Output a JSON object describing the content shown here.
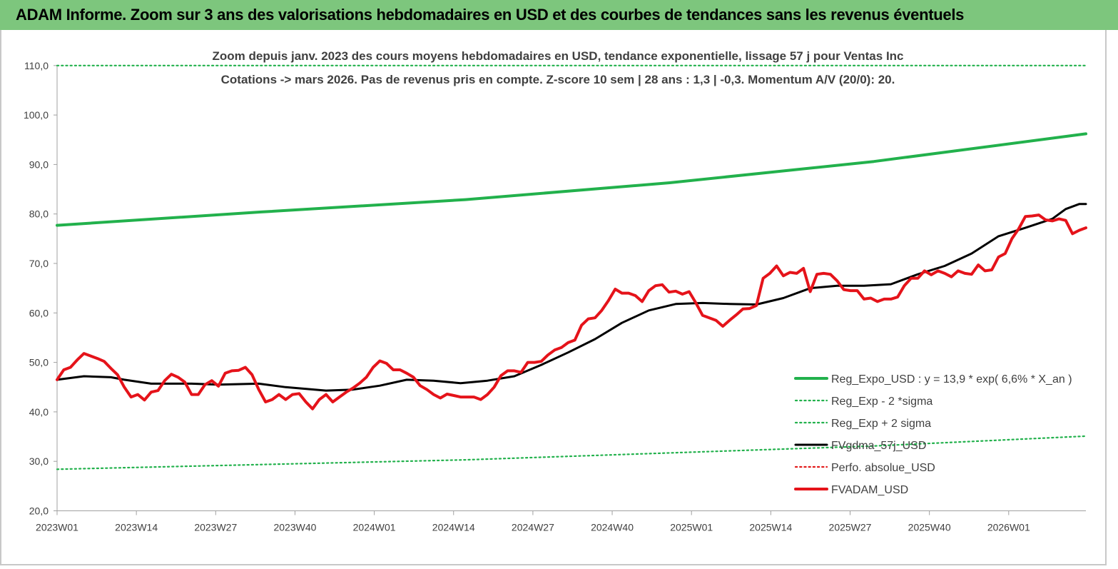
{
  "header": {
    "title": "ADAM Informe. Zoom sur 3 ans des valorisations hebdomadaires en USD et des courbes de tendances sans les revenus éventuels"
  },
  "chart_data": {
    "type": "line",
    "title_line1": "Zoom depuis janv. 2023 des cours moyens hebdomadaires en USD, tendance exponentielle, lissage 57 j pour Ventas Inc",
    "title_line2": "Cotations -> mars 2026. Pas de revenus pris en compte. Z-score 10 sem | 28 ans : 1,3 | -0,3. Momentum A/V (20/0): 20.",
    "x_ticks": [
      "2023W01",
      "2023W14",
      "2023W27",
      "2023W40",
      "2024W01",
      "2024W14",
      "2024W27",
      "2024W40",
      "2025W01",
      "2025W14",
      "2025W27",
      "2025W40",
      "2026W01"
    ],
    "y_ticks": [
      "20,0",
      "30,0",
      "40,0",
      "50,0",
      "60,0",
      "70,0",
      "80,0",
      "90,0",
      "100,0",
      "110,0"
    ],
    "ylim": [
      20,
      110
    ],
    "weeks": 131,
    "grid": false,
    "legend_position": "bottom-right",
    "series": [
      {
        "name": "Reg_Expo_USD : y = 13,9 * exp( 6,6% *  X_an )",
        "color": "#22b14c",
        "style": "solid",
        "anchors": [
          [
            0,
            77.7
          ],
          [
            26,
            80.4
          ],
          [
            52,
            82.9
          ],
          [
            78,
            86.3
          ],
          [
            104,
            90.6
          ],
          [
            131,
            96.2
          ]
        ]
      },
      {
        "name": "Reg_Exp - 2 *sigma",
        "color": "#22b14c",
        "style": "dotted",
        "anchors": [
          [
            0,
            28.4
          ],
          [
            52,
            30.3
          ],
          [
            104,
            33.1
          ],
          [
            131,
            35.1
          ]
        ]
      },
      {
        "name": "Reg_Exp + 2 sigma",
        "color": "#22b14c",
        "style": "dotted",
        "anchors": [
          [
            0,
            110
          ],
          [
            131,
            110
          ]
        ]
      },
      {
        "name": "FVgdma_57j_USD",
        "color": "#000000",
        "style": "solid",
        "anchors": [
          [
            0,
            46.5
          ],
          [
            4,
            47.2
          ],
          [
            8,
            47
          ],
          [
            10,
            46.5
          ],
          [
            14,
            45.7
          ],
          [
            20,
            45.7
          ],
          [
            24,
            45.5
          ],
          [
            30,
            45.7
          ],
          [
            34,
            45
          ],
          [
            40,
            44.3
          ],
          [
            44,
            44.5
          ],
          [
            48,
            45.3
          ],
          [
            52,
            46.5
          ],
          [
            56,
            46.3
          ],
          [
            60,
            45.8
          ],
          [
            64,
            46.3
          ],
          [
            68,
            47.2
          ],
          [
            72,
            49.5
          ],
          [
            76,
            52
          ],
          [
            80,
            54.7
          ],
          [
            84,
            58
          ],
          [
            88,
            60.5
          ],
          [
            92,
            61.8
          ],
          [
            96,
            62
          ],
          [
            100,
            61.8
          ],
          [
            104,
            61.7
          ],
          [
            108,
            63
          ],
          [
            112,
            65
          ],
          [
            116,
            65.5
          ],
          [
            120,
            65.5
          ],
          [
            124,
            65.8
          ],
          [
            128,
            67.8
          ],
          [
            132,
            69.5
          ],
          [
            136,
            72
          ],
          [
            140,
            75.5
          ],
          [
            144,
            77.2
          ],
          [
            148,
            79
          ],
          [
            150,
            81
          ],
          [
            152,
            82
          ],
          [
            153,
            82
          ]
        ]
      },
      {
        "name": "Perfo. absolue_USD",
        "color": "#e21b1b",
        "style": "dotted",
        "anchors": []
      },
      {
        "name": "FVADAM_USD",
        "color": "#e5131a",
        "style": "solid",
        "anchors": [
          [
            0,
            46.5
          ],
          [
            1,
            48.5
          ],
          [
            2,
            49
          ],
          [
            3,
            50.5
          ],
          [
            4,
            51.8
          ],
          [
            5,
            51.3
          ],
          [
            6,
            50.8
          ],
          [
            7,
            50.2
          ],
          [
            8,
            48.8
          ],
          [
            9,
            47.5
          ],
          [
            10,
            45
          ],
          [
            11,
            43
          ],
          [
            12,
            43.5
          ],
          [
            13,
            42.4
          ],
          [
            14,
            44
          ],
          [
            15,
            44.3
          ],
          [
            16,
            46.3
          ],
          [
            17,
            47.6
          ],
          [
            18,
            47
          ],
          [
            19,
            46
          ],
          [
            20,
            43.5
          ],
          [
            21,
            43.5
          ],
          [
            22,
            45.5
          ],
          [
            23,
            46.3
          ],
          [
            24,
            45.2
          ],
          [
            25,
            47.8
          ],
          [
            26,
            48.3
          ],
          [
            27,
            48.4
          ],
          [
            28,
            49
          ],
          [
            29,
            47.5
          ],
          [
            30,
            44.5
          ],
          [
            31,
            42
          ],
          [
            32,
            42.5
          ],
          [
            33,
            43.5
          ],
          [
            34,
            42.5
          ],
          [
            35,
            43.5
          ],
          [
            36,
            43.7
          ],
          [
            37,
            42
          ],
          [
            38,
            40.6
          ],
          [
            39,
            42.5
          ],
          [
            40,
            43.5
          ],
          [
            41,
            42
          ],
          [
            42,
            43
          ],
          [
            43,
            44
          ],
          [
            44,
            44.8
          ],
          [
            45,
            45.8
          ],
          [
            46,
            47
          ],
          [
            47,
            49
          ],
          [
            48,
            50.3
          ],
          [
            49,
            49.8
          ],
          [
            50,
            48.5
          ],
          [
            51,
            48.5
          ],
          [
            52,
            47.8
          ],
          [
            53,
            47
          ],
          [
            54,
            45.3
          ],
          [
            55,
            44.5
          ],
          [
            56,
            43.5
          ],
          [
            57,
            42.8
          ],
          [
            58,
            43.6
          ],
          [
            59,
            43.3
          ],
          [
            60,
            43
          ],
          [
            61,
            43
          ],
          [
            62,
            43
          ],
          [
            63,
            42.5
          ],
          [
            64,
            43.5
          ],
          [
            65,
            45
          ],
          [
            66,
            47.3
          ],
          [
            67,
            48.3
          ],
          [
            68,
            48.3
          ],
          [
            69,
            48
          ],
          [
            70,
            50
          ],
          [
            71,
            50
          ],
          [
            72,
            50.2
          ],
          [
            73,
            51.5
          ],
          [
            74,
            52.5
          ],
          [
            75,
            53
          ],
          [
            76,
            54
          ],
          [
            77,
            54.5
          ],
          [
            78,
            57.5
          ],
          [
            79,
            58.8
          ],
          [
            80,
            59
          ],
          [
            81,
            60.5
          ],
          [
            82,
            62.5
          ],
          [
            83,
            64.8
          ],
          [
            84,
            64
          ],
          [
            85,
            64
          ],
          [
            86,
            63.5
          ],
          [
            87,
            62.3
          ],
          [
            88,
            64.5
          ],
          [
            89,
            65.5
          ],
          [
            90,
            65.7
          ],
          [
            91,
            64.2
          ],
          [
            92,
            64.4
          ],
          [
            93,
            63.8
          ],
          [
            94,
            64.3
          ],
          [
            95,
            62
          ],
          [
            96,
            59.5
          ],
          [
            97,
            59
          ],
          [
            98,
            58.5
          ],
          [
            99,
            57.3
          ],
          [
            100,
            58.5
          ],
          [
            101,
            59.6
          ],
          [
            102,
            60.8
          ],
          [
            103,
            60.9
          ],
          [
            104,
            61.5
          ],
          [
            105,
            67
          ],
          [
            106,
            68
          ],
          [
            107,
            69.5
          ],
          [
            108,
            67.5
          ],
          [
            109,
            68.2
          ],
          [
            110,
            68
          ],
          [
            111,
            69
          ],
          [
            112,
            64.3
          ],
          [
            113,
            67.8
          ],
          [
            114,
            68
          ],
          [
            115,
            67.8
          ],
          [
            116,
            66.5
          ],
          [
            117,
            64.7
          ],
          [
            118,
            64.5
          ],
          [
            119,
            64.5
          ],
          [
            120,
            62.8
          ],
          [
            121,
            63
          ],
          [
            122,
            62.3
          ],
          [
            123,
            62.8
          ],
          [
            124,
            62.8
          ],
          [
            125,
            63.2
          ],
          [
            126,
            65.5
          ],
          [
            127,
            67
          ],
          [
            128,
            67
          ],
          [
            129,
            68.5
          ],
          [
            130,
            67.7
          ],
          [
            131,
            68.5
          ],
          [
            132,
            68
          ],
          [
            133,
            67.3
          ],
          [
            134,
            68.5
          ],
          [
            135,
            68
          ],
          [
            136,
            67.8
          ],
          [
            137,
            69.7
          ],
          [
            138,
            68.5
          ],
          [
            139,
            68.7
          ],
          [
            140,
            71.3
          ],
          [
            141,
            72
          ],
          [
            142,
            75
          ],
          [
            143,
            77
          ],
          [
            144,
            79.5
          ],
          [
            145,
            79.6
          ],
          [
            146,
            79.8
          ],
          [
            147,
            78.8
          ],
          [
            148,
            78.6
          ],
          [
            149,
            79
          ],
          [
            150,
            78.7
          ],
          [
            151,
            76
          ],
          [
            152,
            76.7
          ],
          [
            153,
            77.2
          ]
        ]
      }
    ]
  }
}
